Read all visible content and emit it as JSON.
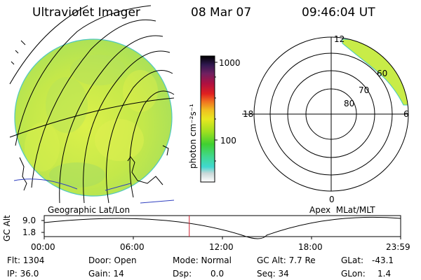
{
  "header": {
    "title": "Ultraviolet Imager",
    "date": "08 Mar 07",
    "time": "09:46:04 UT"
  },
  "colorbar": {
    "label": "photon cm⁻²s⁻¹",
    "tick_high": "1000",
    "tick_mid": "100"
  },
  "geo_panel": {
    "caption": "Geographic Lat/Lon"
  },
  "polar_panel": {
    "caption": "Apex  MLat/MLT",
    "mlt_top": "12",
    "mlt_left": "18",
    "mlt_right": "6",
    "mlt_bottom": "0",
    "lat_outer": "60",
    "lat_mid": "70",
    "lat_inner": "80"
  },
  "altitude_plot": {
    "ylabel": "GC Alt",
    "y_high": "9.0",
    "y_low": "1.8",
    "x_ticks": [
      "00:00",
      "06:00",
      "12:00",
      "18:00",
      "23:59"
    ],
    "current_time_fraction": 0.407
  },
  "info": {
    "flt": "Flt: 1304",
    "ip": "IP: 36.0",
    "door": "Door: Open",
    "gain": "Gain: 14",
    "mode": "Mode: Normal",
    "dsp_label": "Dsp:",
    "dsp_value": "0.0",
    "gc_alt": "GC Alt: 7.7 Re",
    "seq": "Seq: 34",
    "glat_label": "GLat:",
    "glat_value": "-43.1",
    "glon_label": "GLon:",
    "glon_value": "1.4"
  },
  "colors": {
    "coastline_blue": "#3040c0",
    "time_marker": "#d02030",
    "disk_base": "#c8ec4a"
  }
}
